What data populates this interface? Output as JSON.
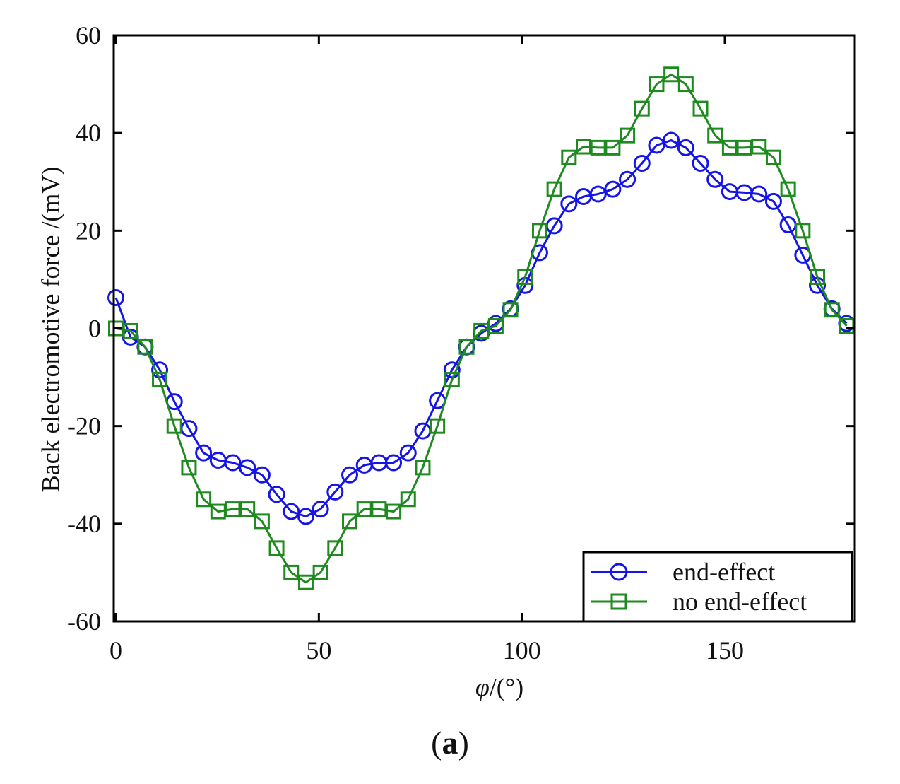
{
  "chart_data": {
    "type": "line",
    "title": "",
    "caption": "(a)",
    "caption_parts": {
      "open": "(",
      "letter": "a",
      "close": ")"
    },
    "xlabel": "φ/(°)",
    "xlabel_parts": {
      "var": "φ",
      "rest": "/(°)"
    },
    "ylabel": "Back electromotive force /(mV)",
    "xlim": [
      -1,
      180
    ],
    "ylim": [
      -60,
      60
    ],
    "xticks": [
      0,
      50,
      100,
      150
    ],
    "yticks": [
      -60,
      -40,
      -20,
      0,
      20,
      40,
      60
    ],
    "grid": false,
    "legend_position": "bottom-right",
    "x": [
      0,
      3.6,
      7.2,
      10.8,
      14.4,
      18,
      21.6,
      25.2,
      28.8,
      32.4,
      36,
      39.6,
      43.2,
      46.8,
      50.4,
      54,
      57.6,
      61.2,
      64.8,
      68.4,
      72,
      75.6,
      79.2,
      82.8,
      86.4,
      90,
      93.6,
      97.2,
      100.8,
      104.4,
      108,
      111.6,
      115.2,
      118.8,
      122.4,
      126,
      129.6,
      133.2,
      136.8,
      140.4,
      144,
      147.6,
      151.2,
      154.8,
      158.4,
      162,
      165.6,
      169.2,
      172.8,
      176.4,
      180
    ],
    "series": [
      {
        "name": "end-effect",
        "color": "#1515e8",
        "marker": "circle",
        "x": [
          0,
          3.6,
          7.2,
          10.8,
          14.4,
          18,
          21.6,
          25.2,
          28.8,
          32.4,
          36,
          39.6,
          43.2,
          46.8,
          50.4,
          54,
          57.6,
          61.2,
          64.8,
          68.4,
          72,
          75.6,
          79.2,
          82.8,
          86.4,
          90,
          93.6,
          97.2,
          100.8,
          104.4,
          108,
          111.6,
          115.2,
          118.8,
          122.4,
          126,
          129.6,
          133.2,
          136.8,
          140.4,
          144,
          147.6,
          151.2,
          154.8,
          158.4,
          162,
          165.6,
          169.2,
          172.8,
          176.4,
          180
        ],
        "values": [
          6.3,
          -1.8,
          -3.8,
          -8.5,
          -15.0,
          -20.5,
          -25.5,
          -27.0,
          -27.5,
          -28.5,
          -30.0,
          -34.0,
          -37.5,
          -38.5,
          -37.0,
          -33.5,
          -30.0,
          -28.0,
          -27.5,
          -27.5,
          -25.5,
          -21.0,
          -14.8,
          -8.5,
          -3.8,
          -1.0,
          1.0,
          4.0,
          8.8,
          15.5,
          21.0,
          25.5,
          27.0,
          27.5,
          28.5,
          30.5,
          33.8,
          37.5,
          38.5,
          37.0,
          33.8,
          30.5,
          28.0,
          27.8,
          27.5,
          26.0,
          21.2,
          15.0,
          8.8,
          4.0,
          1.0
        ]
      },
      {
        "name": "no end-effect",
        "color": "#1f8a1f",
        "marker": "square",
        "x": [
          0,
          3.6,
          7.2,
          10.8,
          14.4,
          18,
          21.6,
          25.2,
          28.8,
          32.4,
          36,
          39.6,
          43.2,
          46.8,
          50.4,
          54,
          57.6,
          61.2,
          64.8,
          68.4,
          72,
          75.6,
          79.2,
          82.8,
          86.4,
          90,
          93.6,
          97.2,
          100.8,
          104.4,
          108,
          111.6,
          115.2,
          118.8,
          122.4,
          126,
          129.6,
          133.2,
          136.8,
          140.4,
          144,
          147.6,
          151.2,
          154.8,
          158.4,
          162,
          165.6,
          169.2,
          172.8,
          176.4,
          180
        ],
        "values": [
          0.0,
          -0.5,
          -3.8,
          -10.5,
          -20.0,
          -28.5,
          -35.0,
          -37.5,
          -37.0,
          -37.0,
          -39.5,
          -45.0,
          -50.0,
          -52.0,
          -50.0,
          -45.0,
          -39.5,
          -37.0,
          -37.0,
          -37.5,
          -35.0,
          -28.5,
          -20.0,
          -10.5,
          -3.8,
          -0.5,
          0.5,
          3.8,
          10.5,
          20.0,
          28.5,
          35.0,
          37.2,
          37.0,
          37.0,
          39.5,
          45.0,
          50.0,
          52.0,
          50.0,
          45.0,
          39.5,
          37.0,
          37.0,
          37.2,
          35.0,
          28.5,
          20.0,
          10.5,
          3.8,
          0.5
        ]
      }
    ]
  }
}
